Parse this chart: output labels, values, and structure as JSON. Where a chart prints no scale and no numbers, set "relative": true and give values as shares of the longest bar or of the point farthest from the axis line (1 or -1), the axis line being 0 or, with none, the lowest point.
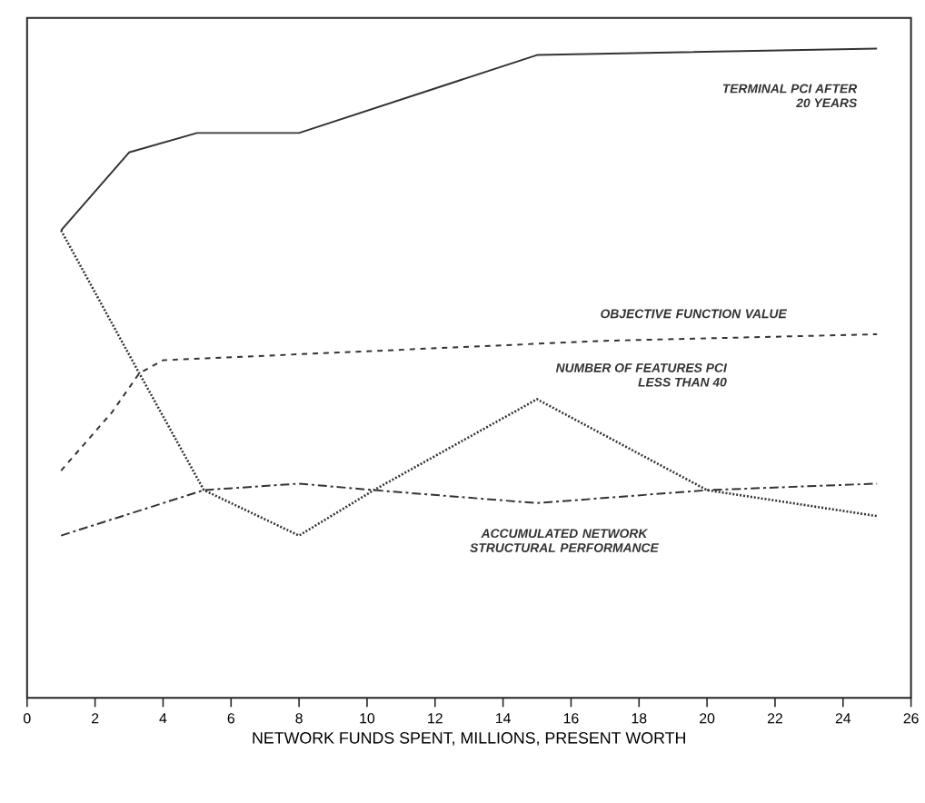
{
  "chart_data": {
    "type": "line",
    "relative": true,
    "xlabel": "NETWORK FUNDS SPENT, MILLIONS, PRESENT WORTH",
    "xlim": [
      0,
      26
    ],
    "xticks": [
      0,
      2,
      4,
      6,
      8,
      10,
      12,
      14,
      16,
      18,
      20,
      22,
      24,
      26
    ],
    "grid": false,
    "legend": false,
    "tick_labels": "x",
    "series": [
      {
        "name": "TERMINAL PCI AFTER 20 YEARS",
        "color": "#333333",
        "line_style": "solid",
        "x": [
          1,
          3,
          5,
          8,
          15,
          25
        ],
        "values": [
          0.72,
          0.84,
          0.87,
          0.87,
          0.99,
          1.0
        ]
      },
      {
        "name": "OBJECTIVE FUNCTION VALUE",
        "color": "#333333",
        "line_style": "dashed",
        "x": [
          1,
          2.5,
          3.3,
          4,
          17,
          25
        ],
        "values": [
          0.35,
          0.44,
          0.5,
          0.52,
          0.55,
          0.56
        ]
      },
      {
        "name": "NUMBER OF FEATURES PCI LESS THAN 40",
        "color": "#333333",
        "line_style": "dotted",
        "x": [
          1,
          3.3,
          5.2,
          8,
          10.2,
          15,
          20,
          25
        ],
        "values": [
          0.72,
          0.5,
          0.32,
          0.25,
          0.32,
          0.46,
          0.32,
          0.28
        ]
      },
      {
        "name": "ACCUMULATED NETWORK STRUCTURAL PERFORMANCE",
        "color": "#333333",
        "line_style": "dashdot",
        "x": [
          1,
          5.2,
          8,
          10.2,
          15,
          20,
          25
        ],
        "values": [
          0.25,
          0.32,
          0.33,
          0.32,
          0.3,
          0.32,
          0.33
        ]
      }
    ]
  }
}
